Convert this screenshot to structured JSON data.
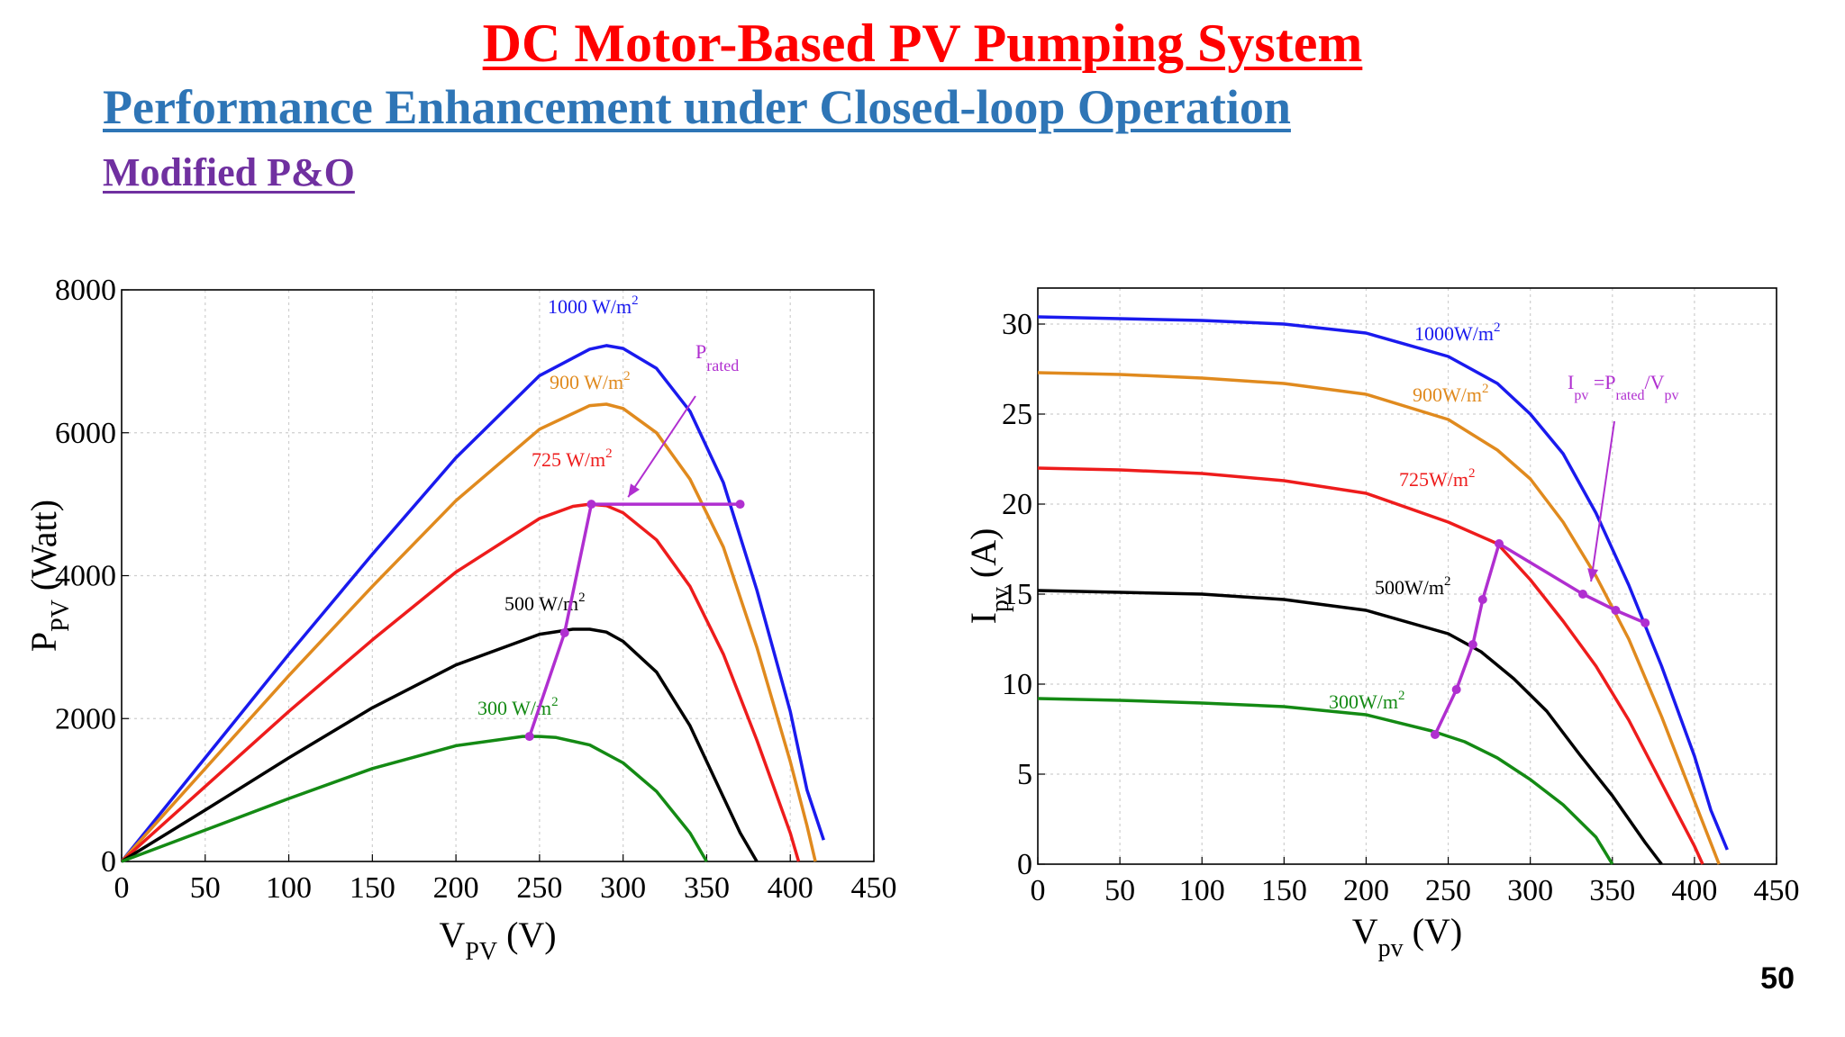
{
  "slide": {
    "title": "DC Motor-Based PV Pumping System",
    "subtitle": "Performance Enhancement under Closed-loop Operation",
    "section": "Modified P&O",
    "page_number": "50"
  },
  "colors": {
    "title": "#ff0000",
    "subtitle": "#2e75b6",
    "section": "#7030a0",
    "curve_1000": "#1a1aee",
    "curve_900": "#e08a1e",
    "curve_725": "#ee1c1c",
    "curve_500": "#000000",
    "curve_300": "#148a14",
    "operating_path": "#b02fd0"
  },
  "chart_data": [
    {
      "type": "line",
      "xlabel": {
        "main": "V",
        "sub": "PV",
        "unit": " (V)"
      },
      "ylabel": {
        "main": "P",
        "sub": "PV",
        "unit": " (Watt)"
      },
      "xlim": [
        0,
        450
      ],
      "ylim": [
        0,
        8000
      ],
      "xticks": [
        0,
        50,
        100,
        150,
        200,
        250,
        300,
        350,
        400,
        450
      ],
      "yticks": [
        0,
        2000,
        4000,
        6000,
        8000
      ],
      "grid": true,
      "series": [
        {
          "name": "1000 W/m",
          "sup": "2",
          "x": [
            0,
            50,
            100,
            150,
            200,
            250,
            280,
            290,
            300,
            320,
            340,
            360,
            380,
            400,
            410,
            420
          ],
          "y": [
            0,
            1450,
            2900,
            4300,
            5650,
            6800,
            7170,
            7220,
            7180,
            6900,
            6300,
            5300,
            3800,
            2100,
            1000,
            300
          ]
        },
        {
          "name": "900 W/m",
          "sup": "2",
          "x": [
            0,
            50,
            100,
            150,
            200,
            250,
            280,
            290,
            300,
            320,
            340,
            360,
            380,
            400,
            410,
            415
          ],
          "y": [
            0,
            1300,
            2600,
            3850,
            5050,
            6050,
            6380,
            6400,
            6340,
            6000,
            5350,
            4400,
            3000,
            1400,
            500,
            0
          ]
        },
        {
          "name": "725 W/m",
          "sup": "2",
          "x": [
            0,
            50,
            100,
            150,
            200,
            250,
            270,
            280,
            290,
            300,
            320,
            340,
            360,
            380,
            400,
            405
          ],
          "y": [
            0,
            1050,
            2100,
            3100,
            4050,
            4800,
            4970,
            5000,
            4980,
            4880,
            4500,
            3850,
            2900,
            1700,
            400,
            0
          ]
        },
        {
          "name": "500 W/m",
          "sup": "2",
          "x": [
            0,
            50,
            100,
            150,
            200,
            250,
            270,
            280,
            290,
            300,
            320,
            340,
            360,
            370,
            380
          ],
          "y": [
            0,
            720,
            1450,
            2150,
            2750,
            3180,
            3250,
            3250,
            3210,
            3080,
            2650,
            1900,
            900,
            400,
            0
          ]
        },
        {
          "name": "300 W/m",
          "sup": "2",
          "x": [
            0,
            50,
            100,
            150,
            200,
            240,
            250,
            260,
            280,
            300,
            320,
            340,
            350
          ],
          "y": [
            0,
            440,
            880,
            1300,
            1620,
            1750,
            1750,
            1735,
            1630,
            1380,
            980,
            400,
            0
          ]
        }
      ],
      "operating_path": {
        "x": [
          244,
          265,
          281,
          370
        ],
        "y": [
          1750,
          3200,
          5000,
          5000
        ]
      },
      "annotation": {
        "main": "P",
        "sub": "rated",
        "arrow_to": [
          303,
          5100
        ]
      }
    },
    {
      "type": "line",
      "xlabel": {
        "main": "V",
        "sub": "pv",
        "unit": " (V)"
      },
      "ylabel": {
        "main": "I",
        "sub": "pv",
        "unit": " (A)"
      },
      "xlim": [
        0,
        450
      ],
      "ylim": [
        0,
        32
      ],
      "xticks": [
        0,
        50,
        100,
        150,
        200,
        250,
        300,
        350,
        400,
        450
      ],
      "yticks": [
        0,
        5,
        10,
        15,
        20,
        25,
        30
      ],
      "grid": true,
      "series": [
        {
          "name": "1000W/m",
          "sup": "2",
          "x": [
            0,
            50,
            100,
            150,
            200,
            250,
            280,
            300,
            320,
            340,
            360,
            380,
            400,
            410,
            420
          ],
          "y": [
            30.4,
            30.3,
            30.2,
            30.0,
            29.5,
            28.2,
            26.7,
            25.0,
            22.8,
            19.5,
            15.5,
            11.0,
            6.0,
            3.0,
            0.8
          ]
        },
        {
          "name": "900W/m",
          "sup": "2",
          "x": [
            0,
            50,
            100,
            150,
            200,
            250,
            280,
            300,
            320,
            340,
            360,
            380,
            400,
            415
          ],
          "y": [
            27.3,
            27.2,
            27.0,
            26.7,
            26.1,
            24.7,
            23.0,
            21.4,
            19.0,
            16.0,
            12.5,
            8.2,
            3.5,
            0
          ]
        },
        {
          "name": "725W/m",
          "sup": "2",
          "x": [
            0,
            50,
            100,
            150,
            200,
            250,
            280,
            300,
            320,
            340,
            360,
            380,
            400,
            405
          ],
          "y": [
            22.0,
            21.9,
            21.7,
            21.3,
            20.6,
            19.0,
            17.8,
            15.8,
            13.5,
            11.0,
            8.0,
            4.5,
            1.0,
            0
          ]
        },
        {
          "name": "500W/m",
          "sup": "2",
          "x": [
            0,
            50,
            100,
            150,
            200,
            250,
            270,
            290,
            310,
            330,
            350,
            370,
            380
          ],
          "y": [
            15.2,
            15.1,
            15.0,
            14.7,
            14.1,
            12.8,
            11.8,
            10.3,
            8.5,
            6.1,
            3.8,
            1.2,
            0
          ]
        },
        {
          "name": "300W/m",
          "sup": "2",
          "x": [
            0,
            50,
            100,
            150,
            200,
            240,
            260,
            280,
            300,
            320,
            340,
            350
          ],
          "y": [
            9.2,
            9.1,
            8.95,
            8.75,
            8.3,
            7.4,
            6.8,
            5.9,
            4.7,
            3.3,
            1.5,
            0
          ]
        }
      ],
      "operating_path": {
        "x": [
          242,
          255,
          265,
          271,
          281,
          332,
          352,
          370
        ],
        "y": [
          7.2,
          9.7,
          12.2,
          14.7,
          17.8,
          15.0,
          14.1,
          13.4
        ]
      },
      "annotation": {
        "main": "I",
        "sub1": "pv",
        "eq": " =P",
        "sub2": "rated",
        "div": "/V",
        "sub3": "pv",
        "arrow_to": [
          337,
          15.7
        ]
      }
    }
  ]
}
